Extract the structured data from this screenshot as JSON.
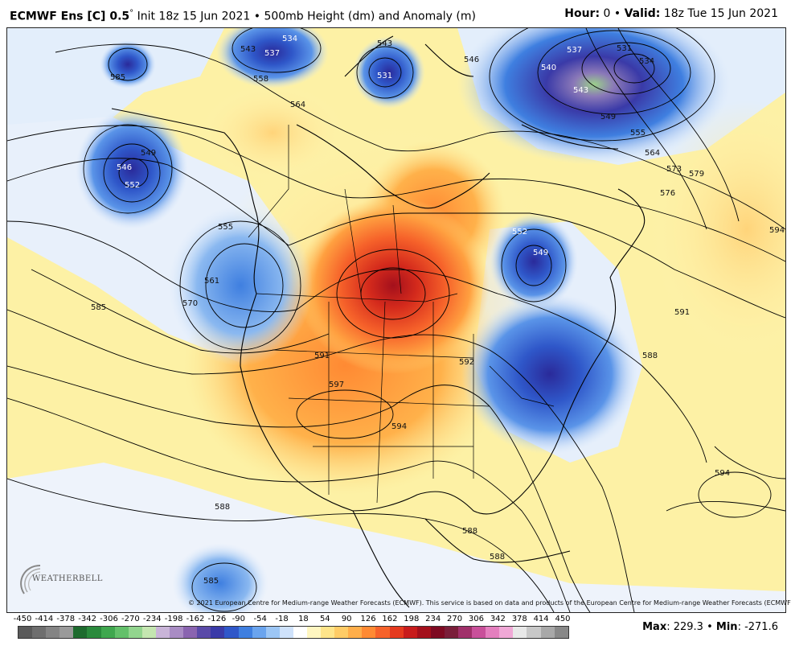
{
  "header": {
    "model": "ECMWF Ens [C] 0.5",
    "degree": "°",
    "init": "Init 18z 15 Jun 2021",
    "bullet": "•",
    "product": "500mb Height (dm) and Anomaly (m)",
    "hour_label": "Hour:",
    "hour_value": "0",
    "valid_label": "Valid:",
    "valid_value": "18z Tue 15 Jun 2021"
  },
  "copyright": "© 2021 European Centre for Medium-range Weather Forecasts (ECMWF). This service is based on data and products of the European Centre for Medium-range Weather Forecasts (ECMWF).",
  "logo": {
    "text": "WEATHERBELL",
    "icon": "weatherbell-logo"
  },
  "colorbar": {
    "labels": [
      "-450",
      "-414",
      "-378",
      "-342",
      "-306",
      "-270",
      "-234",
      "-198",
      "-162",
      "-126",
      "-90",
      "-54",
      "-18",
      "18",
      "54",
      "90",
      "126",
      "162",
      "198",
      "234",
      "270",
      "306",
      "342",
      "378",
      "414",
      "450"
    ],
    "colors": [
      "#5a5a5a",
      "#6e6e6e",
      "#848484",
      "#9a9a9a",
      "#1e6b2e",
      "#2a8a3c",
      "#3fa74e",
      "#63c06a",
      "#92d58e",
      "#c4e6b0",
      "#c9b4d8",
      "#a98cc4",
      "#8a64b0",
      "#5a4aa8",
      "#3a3aa8",
      "#2f57c9",
      "#3f7fe0",
      "#6aa4ee",
      "#9cc6f5",
      "#cfe2fb",
      "#ffffff",
      "#fff6c0",
      "#ffe58a",
      "#ffcc66",
      "#ffae4a",
      "#ff8a33",
      "#f6622a",
      "#e53a1e",
      "#c81c1c",
      "#a4101c",
      "#7e0a22",
      "#7a1e3a",
      "#a0306a",
      "#c9509a",
      "#e47fbe",
      "#f0a8d6",
      "#e8e8e8",
      "#c8c8c8",
      "#a8a8a8",
      "#888888"
    ]
  },
  "stats": {
    "max_label": "Max",
    "max_value": "229.3",
    "min_label": "Min",
    "min_value": "-271.6",
    "separator": "•"
  },
  "contour_labels": [
    "543",
    "537",
    "534",
    "543",
    "558",
    "531",
    "546",
    "540",
    "537",
    "531",
    "534",
    "543",
    "549",
    "555",
    "564",
    "573",
    "579",
    "576",
    "549",
    "546",
    "552",
    "555",
    "564",
    "561",
    "570",
    "552",
    "549",
    "585",
    "594",
    "591",
    "588",
    "591",
    "597",
    "594",
    "592",
    "588",
    "594",
    "588",
    "588",
    "585",
    "585"
  ]
}
